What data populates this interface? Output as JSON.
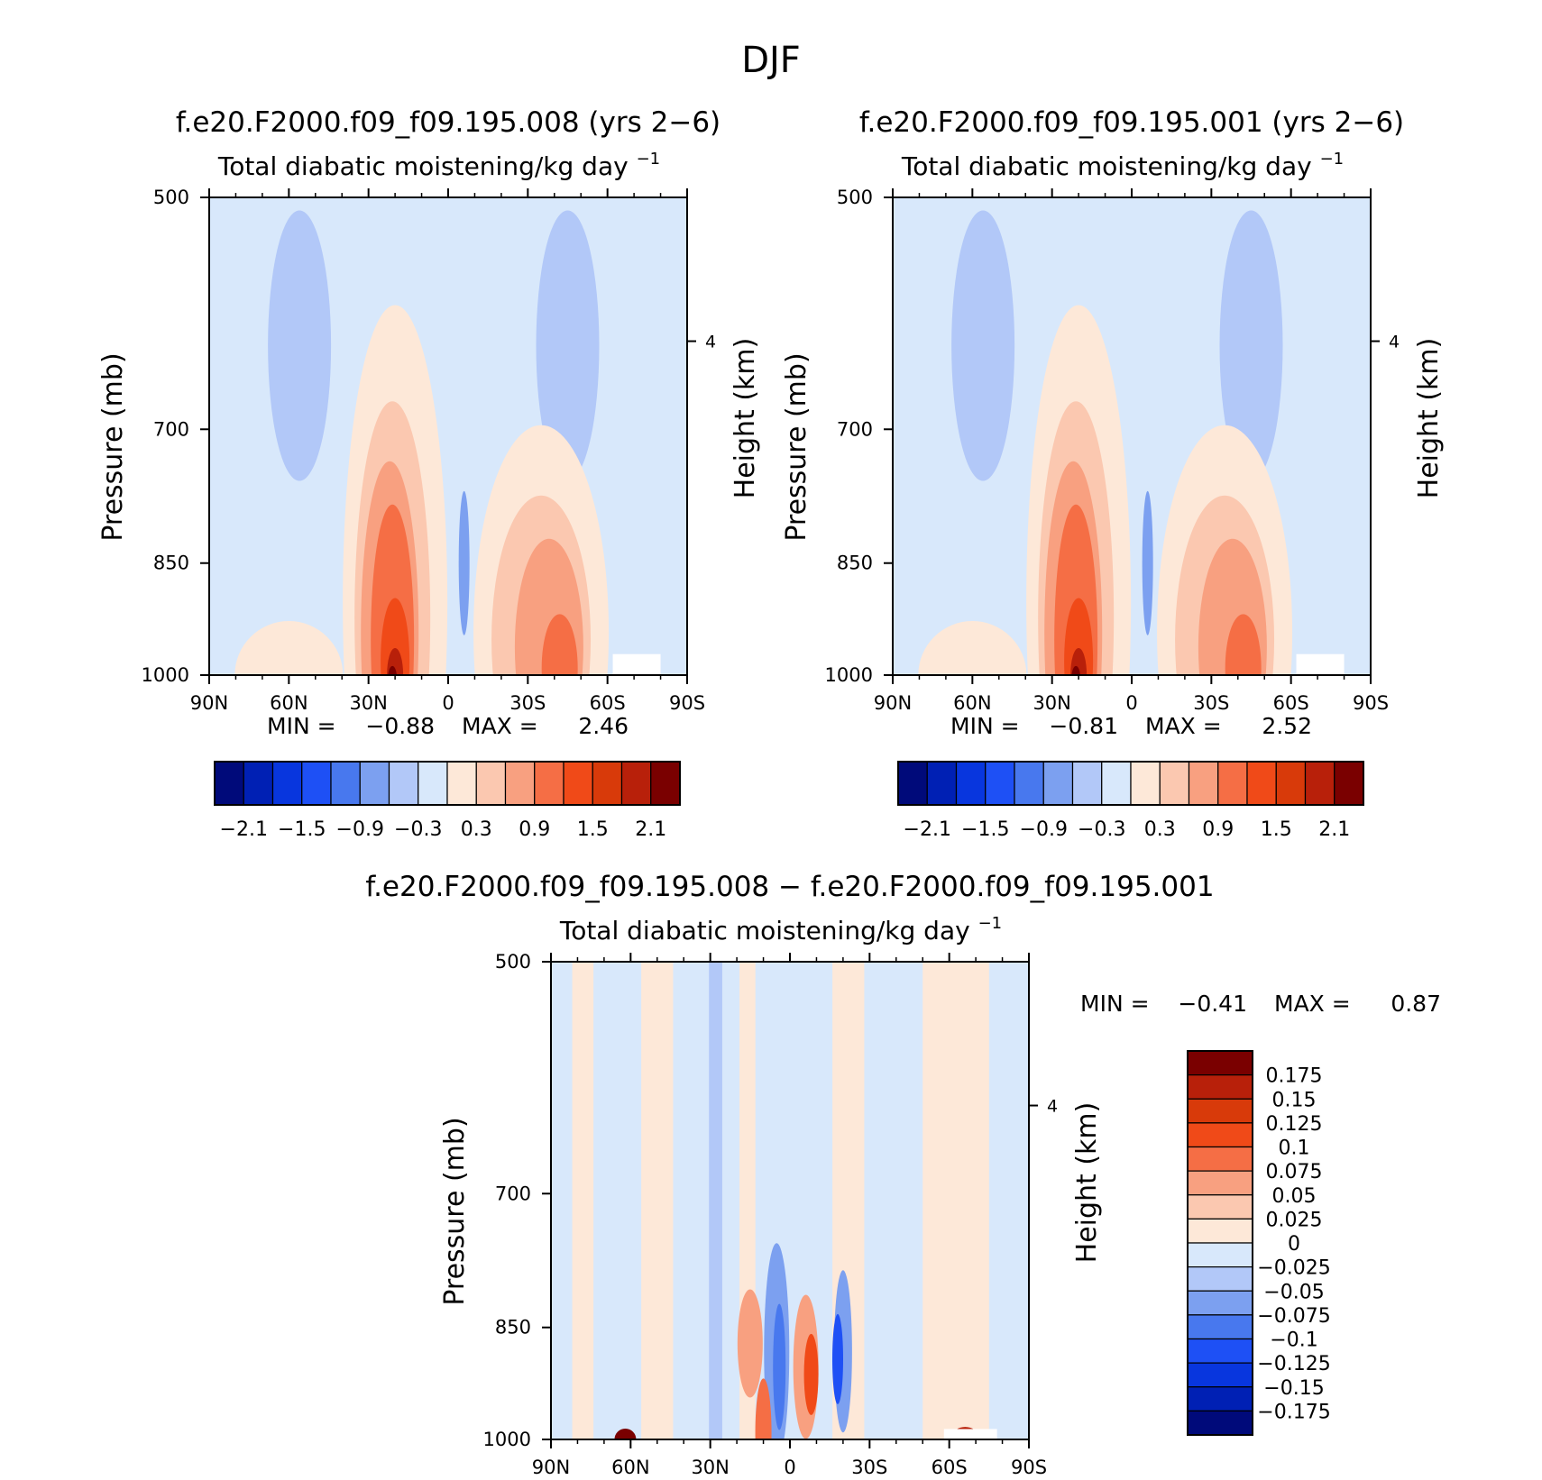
{
  "figure": {
    "title": "DJF"
  },
  "chart_data": [
    {
      "type": "heatmap",
      "title": "f.e20.F2000.f09_f09.195.008 (yrs 2−6)",
      "subtitle": "Total diabatic moistening/kg day",
      "subtitle_exp": "−1",
      "ylabel": "Pressure (mb)",
      "y2label": "Height (km)",
      "x_ticks": [
        "90N",
        "60N",
        "30N",
        "0",
        "30S",
        "60S",
        "90S"
      ],
      "y_ticks": [
        "500",
        "700",
        "850",
        "1000"
      ],
      "y2_ticks": [
        "4"
      ],
      "min_label": "MIN =",
      "min": "−0.88",
      "max_label": "MAX =",
      "max": "2.46",
      "colorbar_labels": [
        "−2.1",
        "−1.5",
        "−0.9",
        "−0.3",
        "0.3",
        "0.9",
        "1.5",
        "2.1"
      ],
      "colorbar_colors": [
        "#000a7a",
        "#0020b4",
        "#0836de",
        "#1e50f5",
        "#4878ee",
        "#7ca0f0",
        "#b2c8f8",
        "#d8e8fb",
        "#fde8d8",
        "#fbc8b0",
        "#f8a080",
        "#f56e45",
        "#f04a18",
        "#d83a0a",
        "#b8200a",
        "#7a0000"
      ]
    },
    {
      "type": "heatmap",
      "title": "f.e20.F2000.f09_f09.195.001 (yrs 2−6)",
      "subtitle": "Total diabatic moistening/kg day",
      "subtitle_exp": "−1",
      "ylabel": "Pressure (mb)",
      "y2label": "Height (km)",
      "x_ticks": [
        "90N",
        "60N",
        "30N",
        "0",
        "30S",
        "60S",
        "90S"
      ],
      "y_ticks": [
        "500",
        "700",
        "850",
        "1000"
      ],
      "y2_ticks": [
        "4"
      ],
      "min_label": "MIN =",
      "min": "−0.81",
      "max_label": "MAX =",
      "max": "2.52",
      "colorbar_labels": [
        "−2.1",
        "−1.5",
        "−0.9",
        "−0.3",
        "0.3",
        "0.9",
        "1.5",
        "2.1"
      ],
      "colorbar_colors": [
        "#000a7a",
        "#0020b4",
        "#0836de",
        "#1e50f5",
        "#4878ee",
        "#7ca0f0",
        "#b2c8f8",
        "#d8e8fb",
        "#fde8d8",
        "#fbc8b0",
        "#f8a080",
        "#f56e45",
        "#f04a18",
        "#d83a0a",
        "#b8200a",
        "#7a0000"
      ]
    },
    {
      "type": "heatmap",
      "title": "f.e20.F2000.f09_f09.195.008 − f.e20.F2000.f09_f09.195.001",
      "subtitle": "Total diabatic moistening/kg day",
      "subtitle_exp": "−1",
      "ylabel": "Pressure (mb)",
      "y2label": "Height (km)",
      "x_ticks": [
        "90N",
        "60N",
        "30N",
        "0",
        "30S",
        "60S",
        "90S"
      ],
      "y_ticks": [
        "500",
        "700",
        "850",
        "1000"
      ],
      "y2_ticks": [
        "4"
      ],
      "min_label": "MIN =",
      "min": "−0.41",
      "max_label": "MAX =",
      "max": "0.87",
      "colorbar_labels": [
        "0.175",
        "0.15",
        "0.125",
        "0.1",
        "0.075",
        "0.05",
        "0.025",
        "0",
        "−0.025",
        "−0.05",
        "−0.075",
        "−0.1",
        "−0.125",
        "−0.15",
        "−0.175"
      ],
      "colorbar_colors": [
        "#7a0000",
        "#b8200a",
        "#d83a0a",
        "#f04a18",
        "#f56e45",
        "#f8a080",
        "#fbc8b0",
        "#fde8d8",
        "#d8e8fb",
        "#b2c8f8",
        "#7ca0f0",
        "#4878ee",
        "#1e50f5",
        "#0836de",
        "#0020b4",
        "#000a7a"
      ]
    }
  ]
}
